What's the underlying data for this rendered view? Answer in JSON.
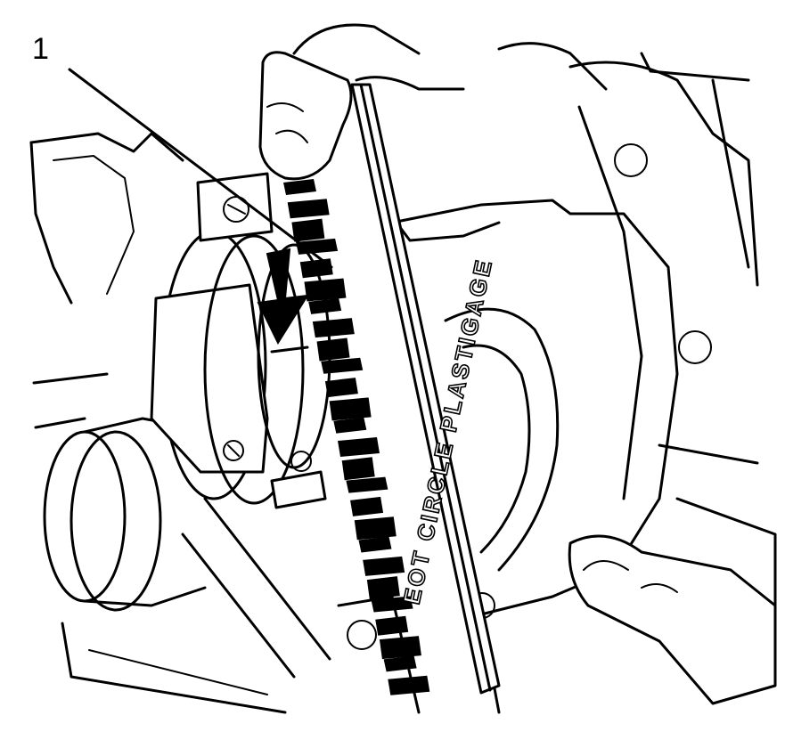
{
  "callout": {
    "number": "1"
  },
  "gauge": {
    "label": "EOT CIRCLE PLASTIGAGE"
  }
}
